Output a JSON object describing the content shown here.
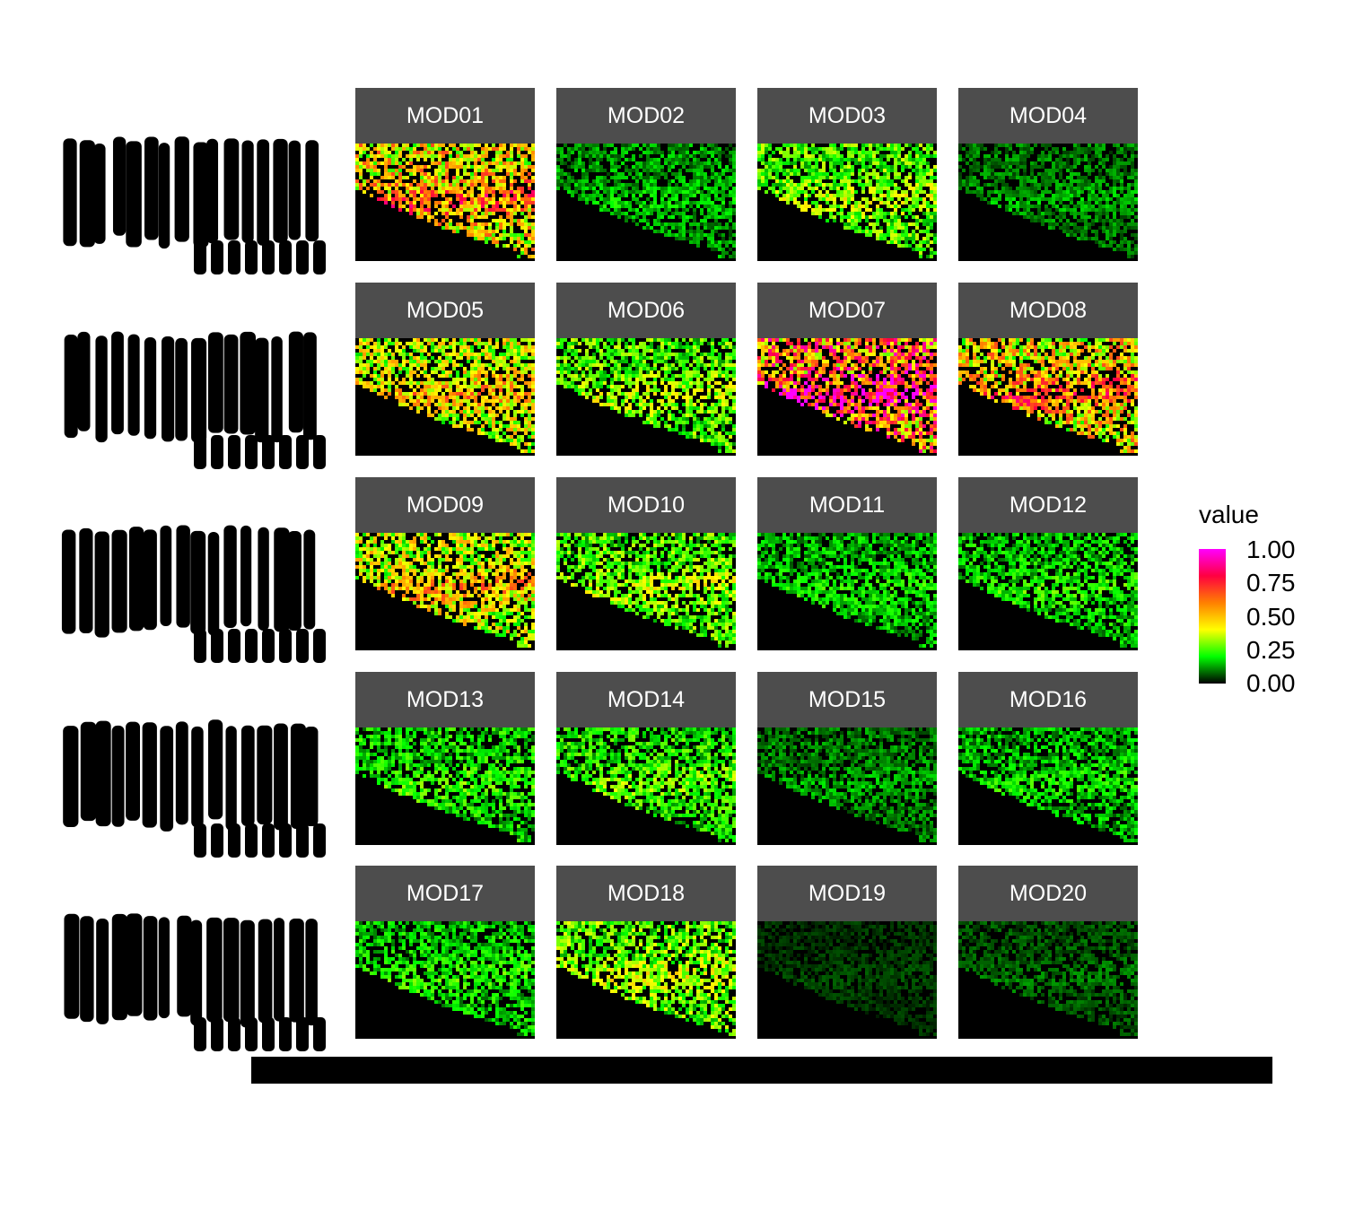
{
  "chart_data": {
    "type": "heatmap",
    "panels": [
      "MOD01",
      "MOD02",
      "MOD03",
      "MOD04",
      "MOD05",
      "MOD06",
      "MOD07",
      "MOD08",
      "MOD09",
      "MOD10",
      "MOD11",
      "MOD12",
      "MOD13",
      "MOD14",
      "MOD15",
      "MOD16",
      "MOD17",
      "MOD18",
      "MOD19",
      "MOD20"
    ],
    "layout": {
      "rows": 5,
      "cols": 4
    },
    "fill_legend": {
      "title": "value",
      "ticks": [
        "1.00",
        "0.75",
        "0.50",
        "0.25",
        "0.00"
      ],
      "range": [
        0,
        1
      ],
      "colors": [
        "#000000",
        "#00ff00",
        "#ffff00",
        "#ff8000",
        "#ff0040",
        "#ff00ff"
      ]
    },
    "panel_intensity": [
      0.55,
      0.15,
      0.3,
      0.12,
      0.45,
      0.3,
      0.75,
      0.55,
      0.45,
      0.3,
      0.18,
      0.2,
      0.22,
      0.25,
      0.12,
      0.18,
      0.2,
      0.32,
      0.05,
      0.08
    ]
  }
}
